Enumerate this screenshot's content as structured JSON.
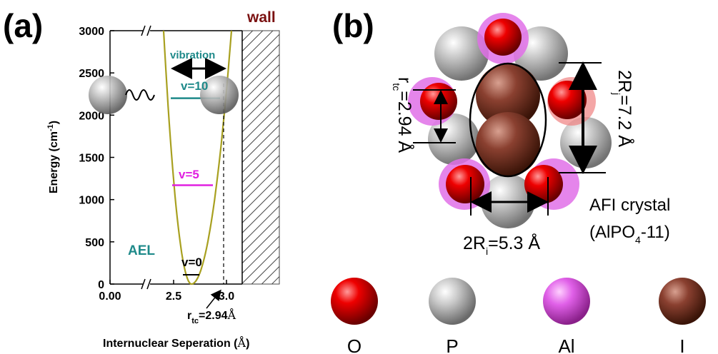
{
  "panel_a": {
    "label": "(a)",
    "wall_label": "wall",
    "vibration_label": "vibration",
    "level_labels": {
      "v10": "v=10",
      "v5": "v=5",
      "v0": "v=0"
    },
    "material_label": "AEL",
    "rtc_label_main": "r",
    "rtc_label_sub": "tc",
    "rtc_label_value": "=2.94",
    "rtc_label_unit": "Å",
    "ylabel_main": "Energy (cm",
    "ylabel_sup": "-1",
    "ylabel_end": ")",
    "xlabel_main": "Internuclear Seperation (",
    "xlabel_unit": "Å",
    "xlabel_end": ")",
    "colors": {
      "curve": "#a8a020",
      "v10": "#1f8a8a",
      "v5": "#e020e0",
      "v0": "#000000",
      "wall_label": "#7a1010",
      "text_accent": "#1f8a8a"
    }
  },
  "chart_data": {
    "type": "line",
    "xlabel": "Internuclear Seperation (Å)",
    "ylabel": "Energy (cm-1)",
    "ylim": [
      0,
      3000
    ],
    "y_ticks": [
      "0",
      "500",
      "1000",
      "1500",
      "2000",
      "2500",
      "3000"
    ],
    "x_ticks": [
      "0.00",
      "2.5",
      "3.0"
    ],
    "x_axis_break": "between 0.00 and 2.5",
    "series": [],
    "levels": [
      {
        "label": "v=10",
        "energy": 2200
      },
      {
        "label": "v=5",
        "energy": 1170
      },
      {
        "label": "v=0",
        "energy": 110
      }
    ],
    "marker": {
      "label": "rtc=2.94Å",
      "x": 2.94
    }
  },
  "panel_b": {
    "label": "(b)",
    "rtc_text_main": "r",
    "rtc_text_sub": "tc",
    "rtc_text_value": "=2.94 Å",
    "rj_text_main": "2R",
    "rj_text_sub": "j",
    "rj_text_value": "=7.2 Å",
    "ri_text_main": "2R",
    "ri_text_sub": "i",
    "ri_text_value": "=5.3 Å",
    "crystal_line1": "AFI crystal",
    "crystal_line2_a": "(AlPO",
    "crystal_line2_sub": "4",
    "crystal_line2_b": "-11)"
  },
  "legend": [
    {
      "symbol": "O",
      "color": "#e00000"
    },
    {
      "symbol": "P",
      "color": "#b0b0b0"
    },
    {
      "symbol": "Al",
      "color": "#e060e8"
    },
    {
      "symbol": "I",
      "color": "#8a4030"
    }
  ]
}
